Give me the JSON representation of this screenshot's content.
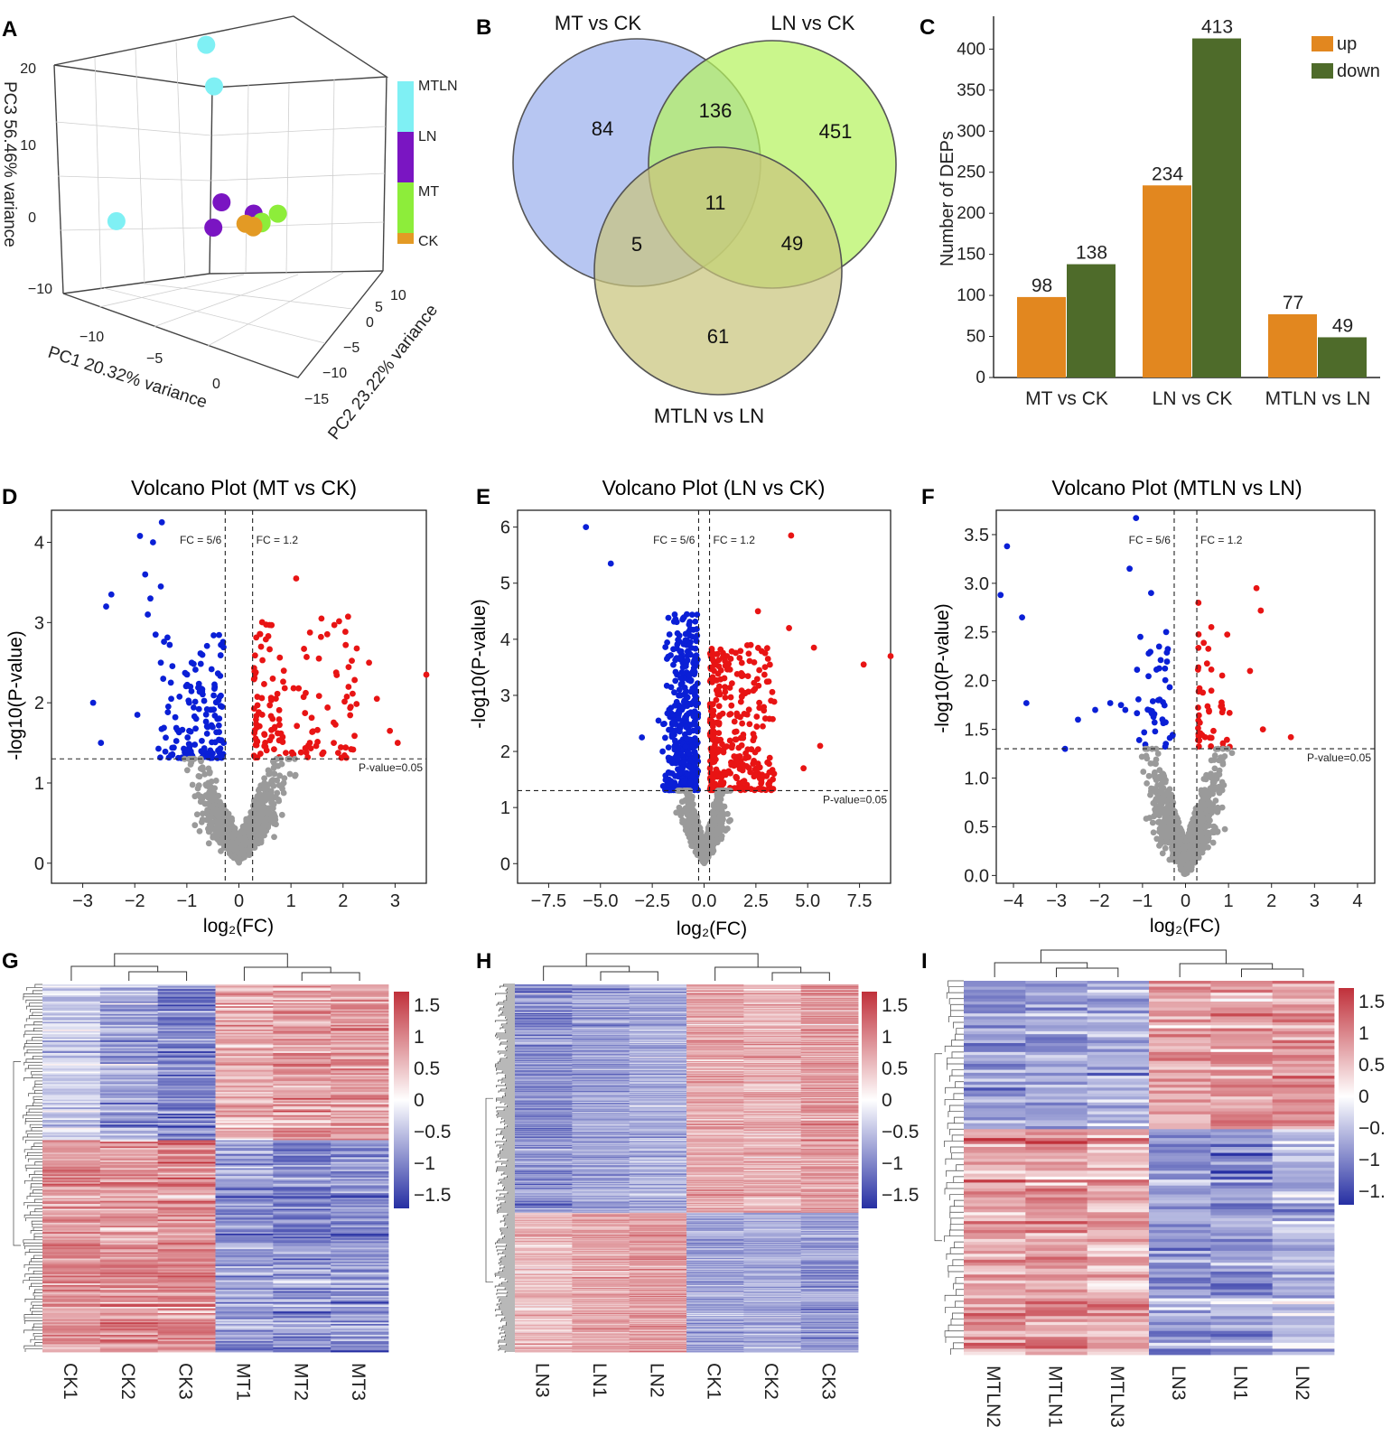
{
  "colors": {
    "mtln": "#7ff0f4",
    "ln": "#7a15c2",
    "mt": "#8ded3a",
    "ck": "#e39a24",
    "up_bar": "#e2871f",
    "down_bar": "#4e6b2a",
    "venn_mt": "#9fb3ee",
    "venn_ln": "#b6f25f",
    "venn_mtln": "#c9c57d",
    "volcano_down": "#0a1fd6",
    "volcano_up": "#e81414",
    "volcano_ns": "#9a9a9a",
    "heat_high": "#c0303a",
    "heat_mid": "#ffffff",
    "heat_low": "#262fa3"
  },
  "panels": {
    "A": {
      "letter": "A",
      "legend": [
        "MTLN",
        "LN",
        "MT",
        "CK"
      ],
      "chart_data": {
        "type": "scatter",
        "projection": "3d",
        "xlabel": "PC1 20.32% variance",
        "ylabel": "PC2 23.22% variance",
        "zlabel": "PC3 56.46% variance",
        "x_ticks": [
          "−10",
          "−5",
          "0"
        ],
        "y_ticks": [
          "−15",
          "−10",
          "−5",
          "0",
          "5",
          "10"
        ],
        "z_ticks": [
          "−10",
          "0",
          "10",
          "20"
        ],
        "series": [
          {
            "name": "MTLN",
            "points": [
              {
                "pc1": -13,
                "pc2": 12,
                "pc3": 21
              },
              {
                "pc1": -10,
                "pc2": 10,
                "pc3": 16
              },
              {
                "pc1": -9,
                "pc2": -3,
                "pc3": 0
              }
            ]
          },
          {
            "name": "LN",
            "points": [
              {
                "pc1": -3,
                "pc2": 4,
                "pc3": 2
              },
              {
                "pc1": -2,
                "pc2": 2,
                "pc3": -1
              },
              {
                "pc1": 2,
                "pc2": 3,
                "pc3": 1
              }
            ]
          },
          {
            "name": "MT",
            "points": [
              {
                "pc1": 4,
                "pc2": 4,
                "pc3": 1
              },
              {
                "pc1": 3,
                "pc2": 3,
                "pc3": 0
              },
              {
                "pc1": 4,
                "pc2": 2,
                "pc3": 0
              }
            ]
          },
          {
            "name": "CK",
            "points": [
              {
                "pc1": 3,
                "pc2": 1,
                "pc3": 0
              },
              {
                "pc1": 5,
                "pc2": 0,
                "pc3": 0
              },
              {
                "pc1": 6,
                "pc2": -1,
                "pc3": 0
              }
            ]
          }
        ]
      }
    },
    "B": {
      "letter": "B",
      "chart_data": {
        "type": "venn",
        "sets": [
          "MT vs CK",
          "LN vs CK",
          "MTLN vs LN"
        ],
        "regions": {
          "mt_only": 84,
          "ln_only": 451,
          "mtln_only": 61,
          "mt_ln": 136,
          "mt_mtln": 5,
          "ln_mtln": 49,
          "all": 11
        }
      }
    },
    "C": {
      "letter": "C",
      "chart_data": {
        "type": "bar",
        "categories": [
          "MT vs CK",
          "LN vs CK",
          "MTLN vs LN"
        ],
        "series": [
          {
            "name": "up",
            "values": [
              98,
              234,
              77
            ]
          },
          {
            "name": "down",
            "values": [
              138,
              413,
              49
            ]
          }
        ],
        "ylabel": "Number of DEPs",
        "ylim": [
          0,
          440
        ],
        "yticks": [
          0,
          50,
          100,
          150,
          200,
          250,
          300,
          350,
          400
        ],
        "legend_position": "top-right"
      }
    },
    "D": {
      "letter": "D",
      "chart_data": {
        "type": "scatter",
        "title": "Volcano Plot (MT vs CK)",
        "xlabel": "log₂(FC)",
        "ylabel": "-log10(P-value)",
        "xlim": [
          -3.6,
          3.6
        ],
        "ylim": [
          -0.25,
          4.4
        ],
        "xticks": [
          -3,
          -2,
          -1,
          0,
          1,
          2,
          3
        ],
        "yticks": [
          0,
          1,
          2,
          3,
          4
        ],
        "fc_lines": [
          -0.263,
          0.263
        ],
        "fc_labels": [
          "FC = 5/6",
          "FC = 1.2"
        ],
        "p_line": 1.301,
        "p_label": "P-value=0.05",
        "highlight_down": [
          [
            -1.48,
            4.25
          ],
          [
            -1.9,
            4.08
          ],
          [
            -1.65,
            4.0
          ],
          [
            -1.8,
            3.6
          ],
          [
            -1.5,
            3.45
          ],
          [
            -2.45,
            3.35
          ],
          [
            -2.55,
            3.2
          ],
          [
            -1.7,
            3.3
          ],
          [
            -1.75,
            3.1
          ],
          [
            -1.6,
            2.85
          ],
          [
            -2.8,
            2.0
          ],
          [
            -2.65,
            1.5
          ],
          [
            -1.95,
            1.85
          ],
          [
            -1.5,
            2.5
          ],
          [
            -1.3,
            2.05
          ]
        ],
        "highlight_up": [
          [
            1.1,
            3.55
          ],
          [
            3.6,
            2.35
          ],
          [
            2.5,
            2.5
          ],
          [
            2.65,
            2.05
          ],
          [
            3.05,
            1.5
          ],
          [
            2.9,
            1.65
          ]
        ],
        "clusters": [
          {
            "group": "down",
            "n": 150,
            "x_range": [
              -1.6,
              -0.29
            ],
            "y_range": [
              1.31,
              2.9
            ]
          },
          {
            "group": "up",
            "n": 140,
            "x_range": [
              0.29,
              2.3
            ],
            "y_range": [
              1.31,
              3.1
            ]
          },
          {
            "group": "ns",
            "n": 900,
            "spread": 0.75,
            "y_max": 1.3
          }
        ]
      }
    },
    "E": {
      "letter": "E",
      "chart_data": {
        "type": "scatter",
        "title": "Volcano Plot (LN vs CK)",
        "xlabel": "log₂(FC)",
        "ylabel": "-log10(P-value)",
        "xlim": [
          -9.0,
          9.0
        ],
        "ylim": [
          -0.35,
          6.3
        ],
        "xticks": [
          -7.5,
          -5.0,
          -2.5,
          0.0,
          2.5,
          5.0,
          7.5
        ],
        "xtick_labels": [
          "−7.5",
          "−5.0",
          "−2.5",
          "0.0",
          "2.5",
          "5.0",
          "7.5"
        ],
        "yticks": [
          0,
          1,
          2,
          3,
          4,
          5,
          6
        ],
        "fc_lines": [
          -0.263,
          0.263
        ],
        "fc_labels": [
          "FC = 5/6",
          "FC = 1.2"
        ],
        "p_line": 1.301,
        "p_label": "P-value=0.05",
        "highlight_down": [
          [
            -5.7,
            6.0
          ],
          [
            -4.5,
            5.35
          ],
          [
            -3.0,
            2.25
          ],
          [
            -2.2,
            2.55
          ],
          [
            -2.0,
            2.0
          ]
        ],
        "highlight_up": [
          [
            4.2,
            5.85
          ],
          [
            4.1,
            4.2
          ],
          [
            5.3,
            3.85
          ],
          [
            7.7,
            3.55
          ],
          [
            9.0,
            3.7
          ],
          [
            4.8,
            1.7
          ],
          [
            5.6,
            2.1
          ],
          [
            2.6,
            4.5
          ]
        ],
        "clusters": [
          {
            "group": "down",
            "n": 420,
            "x_range": [
              -2.0,
              -0.29
            ],
            "y_range": [
              1.31,
              4.45
            ]
          },
          {
            "group": "up",
            "n": 330,
            "x_range": [
              0.29,
              3.4
            ],
            "y_range": [
              1.31,
              3.9
            ]
          },
          {
            "group": "ns",
            "n": 800,
            "spread": 0.9,
            "y_max": 1.3
          }
        ]
      }
    },
    "F": {
      "letter": "F",
      "chart_data": {
        "type": "scatter",
        "title": "Volcano Plot (MTLN vs LN)",
        "xlabel": "log₂(FC)",
        "ylabel": "-log10(P-value)",
        "xlim": [
          -4.4,
          4.4
        ],
        "ylim": [
          -0.08,
          3.75
        ],
        "xticks": [
          -4,
          -3,
          -2,
          -1,
          0,
          1,
          2,
          3,
          4
        ],
        "yticks": [
          0.0,
          0.5,
          1.0,
          1.5,
          2.0,
          2.5,
          3.0,
          3.5
        ],
        "ytick_labels": [
          "0.0",
          "0.5",
          "1.0",
          "1.5",
          "2.0",
          "2.5",
          "3.0",
          "3.5"
        ],
        "fc_lines": [
          -0.263,
          0.263
        ],
        "fc_labels": [
          "FC = 5/6",
          "FC = 1.2"
        ],
        "p_line": 1.301,
        "p_label": "P-value=0.05",
        "highlight_down": [
          [
            -4.15,
            3.38
          ],
          [
            -4.3,
            2.88
          ],
          [
            -3.8,
            2.65
          ],
          [
            -3.7,
            1.77
          ],
          [
            -2.8,
            1.3
          ],
          [
            -2.5,
            1.6
          ],
          [
            -2.1,
            1.7
          ],
          [
            -1.75,
            1.77
          ],
          [
            -1.5,
            1.75
          ],
          [
            -1.4,
            1.7
          ],
          [
            -1.15,
            3.67
          ],
          [
            -1.3,
            3.15
          ],
          [
            -0.8,
            2.9
          ],
          [
            -1.05,
            2.45
          ],
          [
            -0.45,
            2.5
          ]
        ],
        "highlight_up": [
          [
            1.65,
            2.95
          ],
          [
            1.75,
            2.72
          ],
          [
            1.5,
            2.1
          ],
          [
            1.8,
            1.5
          ],
          [
            2.45,
            1.42
          ],
          [
            0.6,
            2.55
          ],
          [
            0.3,
            2.8
          ]
        ],
        "clusters": [
          {
            "group": "down",
            "n": 40,
            "x_range": [
              -1.3,
              -0.29
            ],
            "y_range": [
              1.31,
              2.4
            ]
          },
          {
            "group": "up",
            "n": 45,
            "x_range": [
              0.29,
              1.1
            ],
            "y_range": [
              1.31,
              2.5
            ]
          },
          {
            "group": "ns",
            "n": 1000,
            "spread": 0.75,
            "y_max": 1.3
          }
        ]
      }
    },
    "G": {
      "letter": "G",
      "chart_data": {
        "type": "heatmap",
        "columns": [
          "CK1",
          "CK2",
          "CK3",
          "MT1",
          "MT2",
          "MT3"
        ],
        "column_pattern": [
          [
            -0.4,
            1.0
          ],
          [
            -0.8,
            0.9
          ],
          [
            -1.1,
            1.0
          ],
          [
            0.7,
            -0.9
          ],
          [
            0.9,
            -1.1
          ],
          [
            0.9,
            -1.0
          ]
        ],
        "split": 0.42,
        "rows": 236,
        "colorbar_ticks": [
          "1.5",
          "1",
          "0.5",
          "0",
          "−0.5",
          "−1",
          "−1.5"
        ]
      }
    },
    "H": {
      "letter": "H",
      "chart_data": {
        "type": "heatmap",
        "columns": [
          "LN3",
          "LN1",
          "LN2",
          "CK1",
          "CK2",
          "CK3"
        ],
        "column_pattern": [
          [
            -1.0,
            0.6
          ],
          [
            -0.8,
            0.8
          ],
          [
            -0.7,
            0.9
          ],
          [
            0.8,
            -0.8
          ],
          [
            0.7,
            -0.7
          ],
          [
            0.9,
            -0.9
          ]
        ],
        "split": 0.62,
        "rows": 647,
        "colorbar_ticks": [
          "1.5",
          "1",
          "0.5",
          "0",
          "−0.5",
          "−1",
          "−1.5"
        ]
      }
    },
    "I": {
      "letter": "I",
      "chart_data": {
        "type": "heatmap",
        "columns": [
          "MTLN2",
          "MTLN1",
          "MTLN3",
          "LN3",
          "LN1",
          "LN2"
        ],
        "column_pattern": [
          [
            -0.9,
            0.9
          ],
          [
            -0.9,
            0.9
          ],
          [
            -0.7,
            0.7
          ],
          [
            0.8,
            -0.9
          ],
          [
            0.9,
            -0.9
          ],
          [
            0.9,
            -0.6
          ]
        ],
        "split": 0.39,
        "rows": 126,
        "colorbar_ticks": [
          "1.5",
          "1",
          "0.5",
          "0",
          "−0.",
          "−1",
          "−1."
        ]
      }
    }
  }
}
